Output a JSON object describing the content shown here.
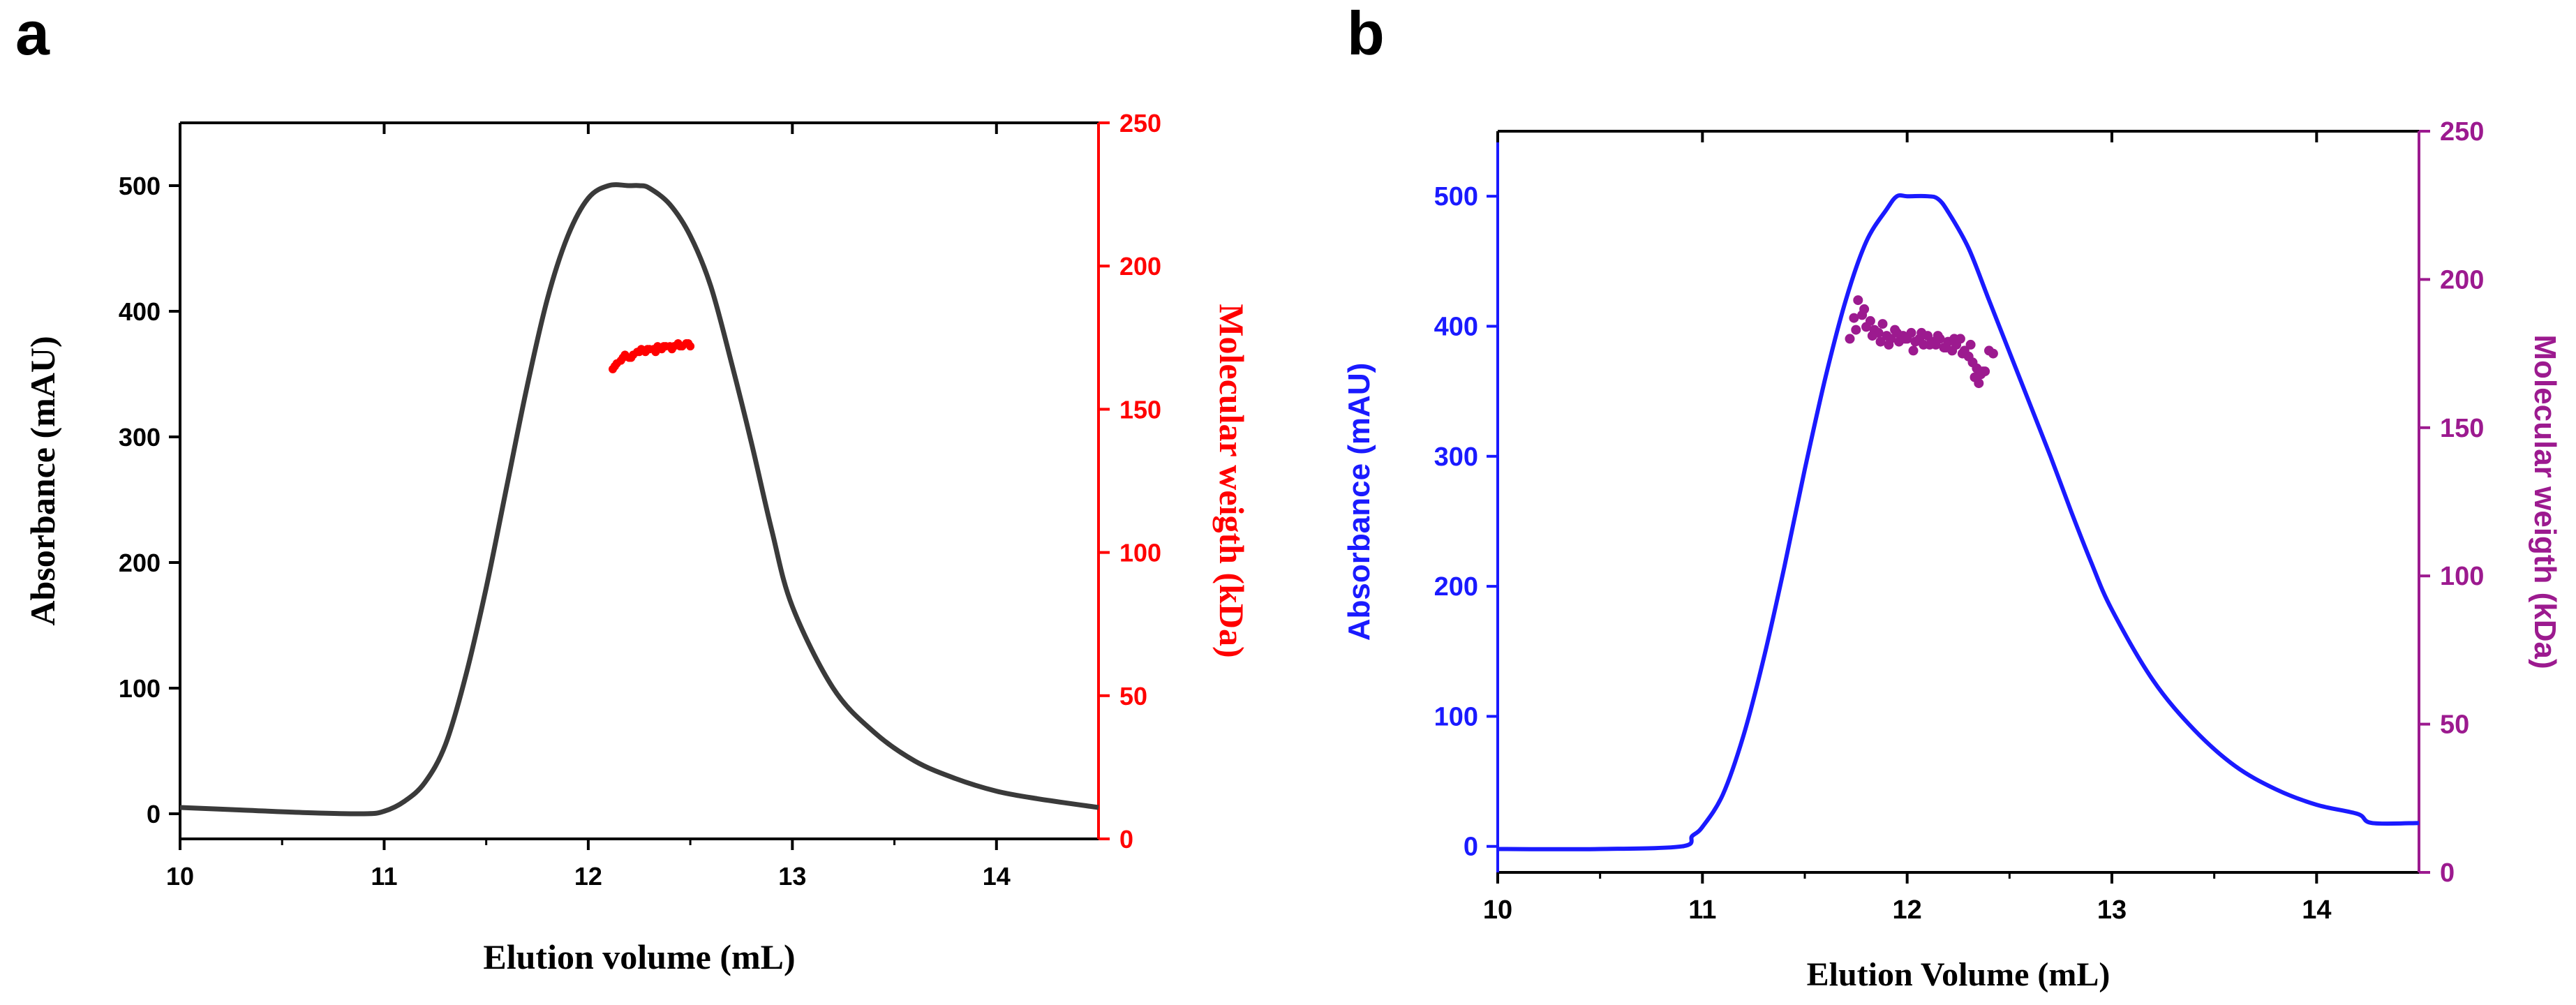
{
  "chart_data": [
    {
      "panel_label": "a",
      "type": "line",
      "xlabel": "Elution volume (mL)",
      "ylabel_left": "Absorbance (mAU)",
      "ylabel_right": "Molecular weigth (kDa)",
      "xlim": [
        10,
        14.5
      ],
      "ylim_left": [
        -20,
        550
      ],
      "ylim_right": [
        0,
        250
      ],
      "xticks": [
        10,
        11,
        12,
        13,
        14
      ],
      "yticks_left": [
        0,
        100,
        200,
        300,
        400,
        500
      ],
      "yticks_right": [
        0,
        50,
        100,
        150,
        200,
        250
      ],
      "colors": {
        "absorbance": "#3a3a3a",
        "molecular_weight": "#ff0000",
        "right_axis": "#ff0000",
        "axis": "#000000"
      },
      "series": [
        {
          "name": "Absorbance",
          "axis": "left",
          "x": [
            10.0,
            10.3,
            10.6,
            10.9,
            11.0,
            11.1,
            11.2,
            11.3,
            11.4,
            11.5,
            11.6,
            11.7,
            11.8,
            11.9,
            12.0,
            12.1,
            12.2,
            12.25,
            12.3,
            12.4,
            12.5,
            12.6,
            12.7,
            12.8,
            12.9,
            13.0,
            13.2,
            13.4,
            13.6,
            13.8,
            14.0,
            14.2,
            14.5
          ],
          "y": [
            5,
            3,
            1,
            0,
            2,
            10,
            25,
            55,
            110,
            180,
            260,
            340,
            410,
            460,
            490,
            500,
            500,
            500,
            498,
            485,
            460,
            420,
            360,
            295,
            225,
            165,
            100,
            65,
            42,
            28,
            18,
            12,
            5
          ]
        },
        {
          "name": "Molecular weight",
          "axis": "right",
          "type": "scatter",
          "x": [
            12.12,
            12.14,
            12.16,
            12.18,
            12.2,
            12.22,
            12.24,
            12.26,
            12.28,
            12.3,
            12.32,
            12.34,
            12.36,
            12.38,
            12.4,
            12.42,
            12.44,
            12.46,
            12.48,
            12.5,
            12.13,
            12.17,
            12.21,
            12.25,
            12.29,
            12.33,
            12.37,
            12.41,
            12.45,
            12.49
          ],
          "y": [
            164,
            166,
            167,
            169,
            168,
            169,
            170,
            171,
            170,
            171,
            171,
            172,
            171,
            172,
            172,
            172,
            173,
            172,
            173,
            172,
            165,
            168,
            168,
            170,
            171,
            170,
            172,
            171,
            172,
            173
          ]
        }
      ]
    },
    {
      "panel_label": "b",
      "type": "line",
      "xlabel": "Elution Volume (mL)",
      "ylabel_left": "Absorbance (mAU)",
      "ylabel_right": "Molecular weigth (kDa)",
      "xlim": [
        10,
        14.5
      ],
      "ylim_left": [
        -20,
        550
      ],
      "ylim_right": [
        0,
        250
      ],
      "xticks": [
        10,
        11,
        12,
        13,
        14
      ],
      "yticks_left": [
        0,
        100,
        200,
        300,
        400,
        500
      ],
      "yticks_right": [
        0,
        50,
        100,
        150,
        200,
        250
      ],
      "colors": {
        "absorbance": "#1a1aff",
        "molecular_weight": "#9c1a8f",
        "left_axis": "#1a1aff",
        "right_axis": "#9c1a8f",
        "axis": "#000000"
      },
      "series": [
        {
          "name": "Absorbance",
          "axis": "left",
          "x": [
            10.0,
            10.5,
            10.9,
            10.95,
            11.0,
            11.1,
            11.2,
            11.3,
            11.4,
            11.5,
            11.6,
            11.7,
            11.8,
            11.9,
            11.95,
            12.0,
            12.1,
            12.15,
            12.2,
            12.3,
            12.4,
            12.5,
            12.6,
            12.7,
            12.8,
            12.9,
            13.0,
            13.2,
            13.4,
            13.6,
            13.8,
            14.0,
            14.2,
            14.27,
            14.5
          ],
          "y": [
            -2,
            -2,
            0,
            8,
            15,
            40,
            85,
            145,
            215,
            290,
            360,
            420,
            465,
            490,
            500,
            500,
            500,
            498,
            488,
            460,
            420,
            380,
            340,
            300,
            258,
            218,
            182,
            128,
            90,
            62,
            44,
            32,
            25,
            18,
            18
          ]
        },
        {
          "name": "Molecular weight",
          "axis": "right",
          "type": "scatter",
          "x": [
            11.72,
            11.74,
            11.76,
            11.78,
            11.8,
            11.82,
            11.84,
            11.86,
            11.88,
            11.9,
            11.92,
            11.94,
            11.96,
            11.98,
            12.0,
            12.02,
            12.04,
            12.06,
            12.08,
            12.1,
            12.12,
            12.14,
            12.16,
            12.18,
            12.2,
            12.22,
            12.24,
            12.26,
            12.28,
            12.3,
            12.32,
            12.34,
            12.36,
            12.38,
            12.4,
            12.42,
            11.75,
            11.79,
            11.83,
            11.87,
            11.91,
            11.95,
            11.99,
            12.03,
            12.07,
            12.11,
            12.15,
            12.19,
            12.23,
            12.27,
            12.31,
            12.35,
            12.33,
            12.37
          ],
          "y": [
            180,
            187,
            193,
            188,
            184,
            186,
            183,
            182,
            185,
            181,
            180,
            183,
            179,
            181,
            180,
            182,
            179,
            180,
            178,
            181,
            179,
            178,
            180,
            177,
            179,
            176,
            178,
            180,
            176,
            174,
            172,
            170,
            168,
            169,
            176,
            175,
            183,
            190,
            181,
            179,
            178,
            182,
            180,
            176,
            182,
            178,
            181,
            177,
            180,
            175,
            178,
            165,
            167,
            169
          ]
        }
      ]
    }
  ]
}
